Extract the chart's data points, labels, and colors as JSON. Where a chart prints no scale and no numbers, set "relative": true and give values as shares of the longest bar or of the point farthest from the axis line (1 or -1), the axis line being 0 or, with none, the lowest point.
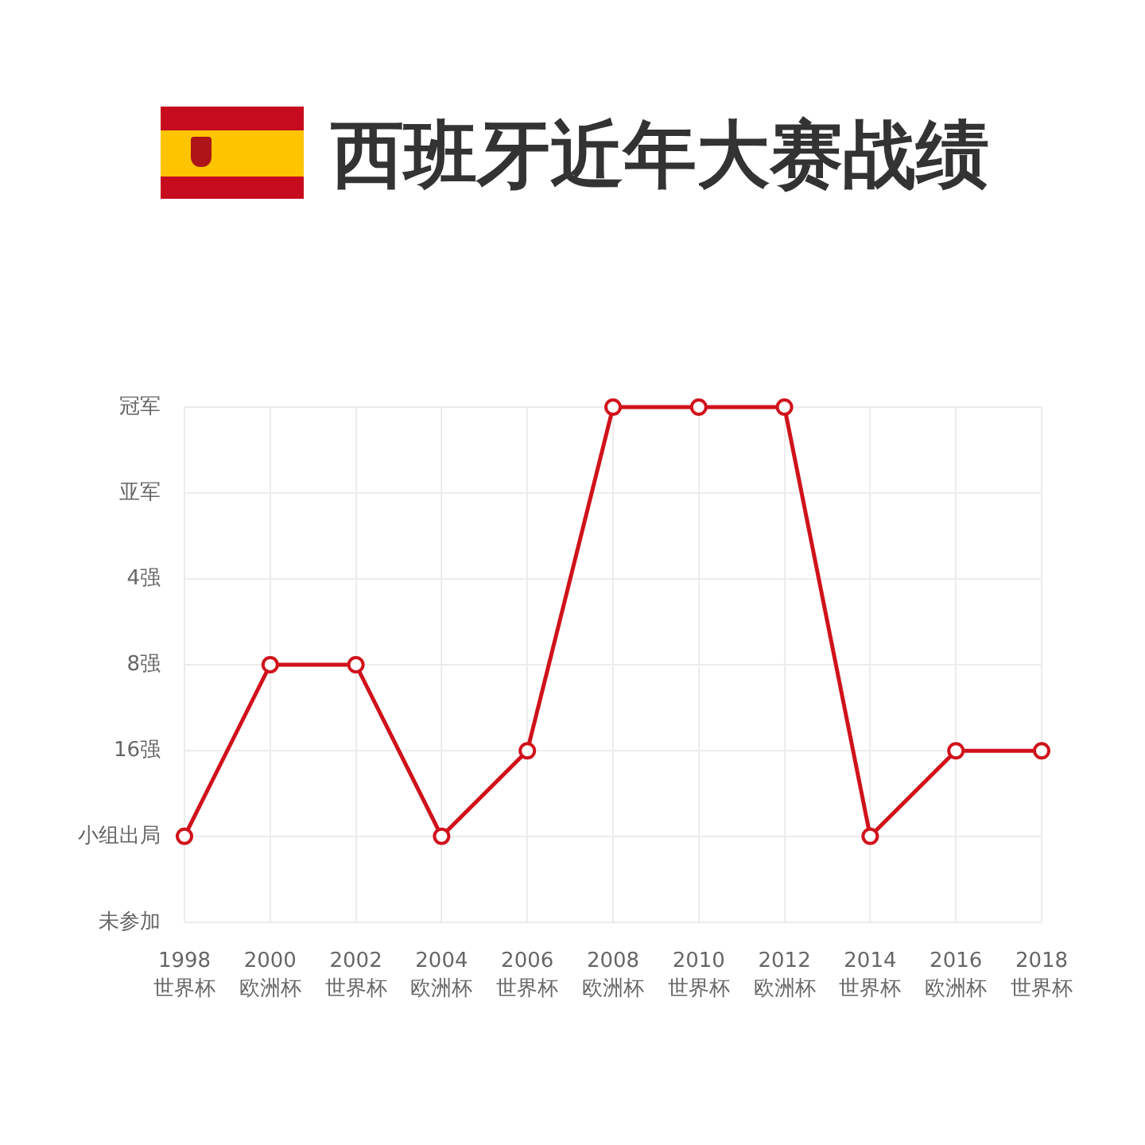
{
  "chart_data": {
    "type": "line",
    "title": "西班牙近年大赛战绩",
    "categories": [
      "1998 世界杯",
      "2000 欧洲杯",
      "2002 世界杯",
      "2004 欧洲杯",
      "2006 世界杯",
      "2008 欧洲杯",
      "2010 世界杯",
      "2012 欧洲杯",
      "2014 世界杯",
      "2016 欧洲杯",
      "2018 世界杯"
    ],
    "y_categories": [
      "冠军",
      "亚军",
      "4强",
      "8强",
      "16强",
      "小组出局",
      "未参加"
    ],
    "relative": true,
    "series": [
      {
        "color": "#d0121b",
        "values": [
          0.167,
          0.5,
          0.5,
          0.167,
          0.333,
          1,
          1,
          1,
          0.167,
          0.333,
          0.333
        ]
      }
    ],
    "grid": true,
    "marker": "circle",
    "line_style": "solid"
  }
}
